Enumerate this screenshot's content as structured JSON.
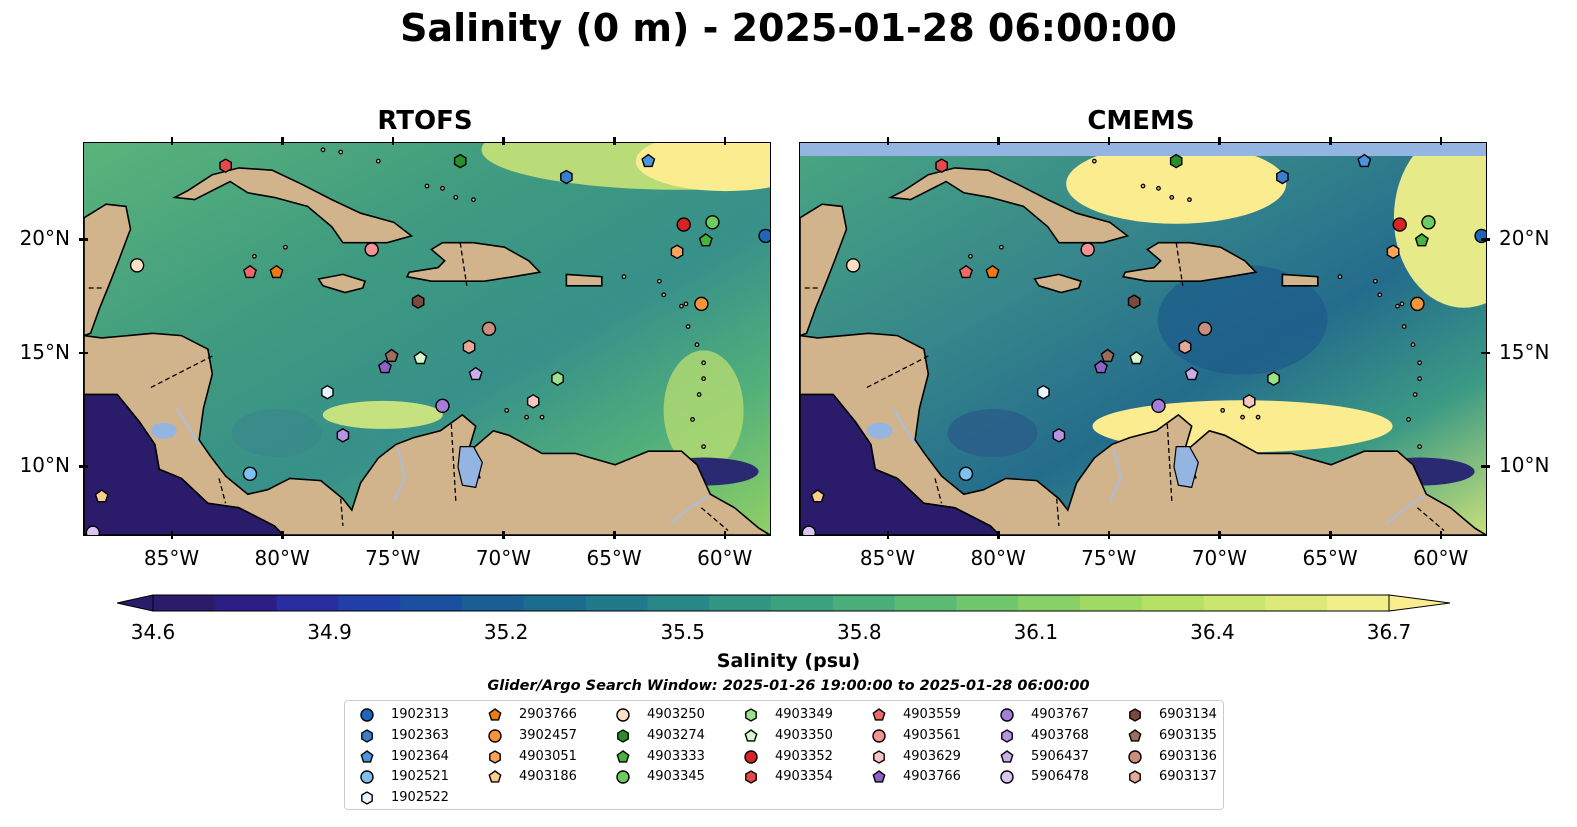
{
  "title": "Salinity (0 m) - 2025-01-28 06:00:00",
  "panels": [
    {
      "title": "RTOFS",
      "model": "rtofs"
    },
    {
      "title": "CMEMS",
      "model": "cmems"
    }
  ],
  "axes": {
    "lon_ticks": [
      "85°W",
      "80°W",
      "75°W",
      "70°W",
      "65°W",
      "60°W"
    ],
    "lat_ticks": [
      "20°N",
      "15°N",
      "10°N"
    ],
    "lon_range": [
      -89.0,
      -58.0
    ],
    "lat_range": [
      7.0,
      24.3
    ]
  },
  "colorbar": {
    "label": "Salinity (psu)",
    "ticks": [
      "34.6",
      "34.9",
      "35.2",
      "35.5",
      "35.8",
      "36.1",
      "36.4",
      "36.7"
    ],
    "range": [
      34.6,
      36.7
    ],
    "colormap": "haline",
    "extend": "both"
  },
  "search_window": "Glider/Argo Search Window: 2025-01-26 19:00:00 to 2025-01-28 06:00:00",
  "colors": {
    "land": "#d2b48c",
    "lakes": "#94b4e2",
    "low_salinity": "#2a1c6a",
    "high_salinity": "#fbec8f"
  },
  "floats": [
    {
      "id": "1902313",
      "marker": "circle",
      "color": "#1f66b8",
      "lon": -58.2,
      "lat": 20.2
    },
    {
      "id": "1902363",
      "marker": "hexagon",
      "color": "#3a7fcf",
      "lon": -67.2,
      "lat": 22.8
    },
    {
      "id": "1902364",
      "marker": "pentagon",
      "color": "#4c93e0",
      "lon": -63.5,
      "lat": 23.5
    },
    {
      "id": "1902521",
      "marker": "circle",
      "color": "#7fc0f0",
      "lon": -81.5,
      "lat": 9.7
    },
    {
      "id": "1902522",
      "marker": "hexagon",
      "color": "#e8f5ff",
      "lon": -78.0,
      "lat": 13.3
    },
    {
      "id": "2903766",
      "marker": "pentagon",
      "color": "#ee7a12",
      "lon": -80.3,
      "lat": 18.6
    },
    {
      "id": "3902457",
      "marker": "circle",
      "color": "#f6943a",
      "lon": -61.1,
      "lat": 17.2
    },
    {
      "id": "4903051",
      "marker": "hexagon",
      "color": "#f8a55a",
      "lon": -62.2,
      "lat": 19.5
    },
    {
      "id": "4903186",
      "marker": "pentagon",
      "color": "#fbcd8c",
      "lon": -88.2,
      "lat": 8.7
    },
    {
      "id": "4903250",
      "marker": "circle",
      "color": "#fde0c4",
      "lon": -86.6,
      "lat": 18.9
    },
    {
      "id": "4903274",
      "marker": "hexagon",
      "color": "#2a8f2a",
      "lon": -72.0,
      "lat": 23.5
    },
    {
      "id": "4903333",
      "marker": "pentagon",
      "color": "#45b53c",
      "lon": -60.9,
      "lat": 20.0
    },
    {
      "id": "4903345",
      "marker": "circle",
      "color": "#6ccc60",
      "lon": -60.6,
      "lat": 20.8
    },
    {
      "id": "4903349",
      "marker": "hexagon",
      "color": "#9be38b",
      "lon": -67.6,
      "lat": 13.9
    },
    {
      "id": "4903350",
      "marker": "pentagon",
      "color": "#d7f7cc",
      "lon": -73.8,
      "lat": 14.8
    },
    {
      "id": "4903352",
      "marker": "circle",
      "color": "#d42424",
      "lon": -61.9,
      "lat": 20.7
    },
    {
      "id": "4903354",
      "marker": "hexagon",
      "color": "#e84848",
      "lon": -82.6,
      "lat": 23.3
    },
    {
      "id": "4903559",
      "marker": "pentagon",
      "color": "#f06868",
      "lon": -81.5,
      "lat": 18.6
    },
    {
      "id": "4903561",
      "marker": "circle",
      "color": "#f39494",
      "lon": -76.0,
      "lat": 19.6
    },
    {
      "id": "4903629",
      "marker": "hexagon",
      "color": "#f9c4c4",
      "lon": -68.7,
      "lat": 12.9
    },
    {
      "id": "4903766",
      "marker": "pentagon",
      "color": "#8c62c8",
      "lon": -75.4,
      "lat": 14.4
    },
    {
      "id": "4903767",
      "marker": "circle",
      "color": "#a57ed8",
      "lon": -72.8,
      "lat": 12.7
    },
    {
      "id": "4903768",
      "marker": "hexagon",
      "color": "#b793e3",
      "lon": -77.3,
      "lat": 11.4
    },
    {
      "id": "5906437",
      "marker": "pentagon",
      "color": "#c9aeea",
      "lon": -71.3,
      "lat": 14.1
    },
    {
      "id": "5906478",
      "marker": "circle",
      "color": "#dcc4f3",
      "lon": -88.6,
      "lat": 7.1
    },
    {
      "id": "6903134",
      "marker": "hexagon",
      "color": "#7a4a3c",
      "lon": -73.9,
      "lat": 17.3
    },
    {
      "id": "6903135",
      "marker": "pentagon",
      "color": "#9c6e5d",
      "lon": -75.1,
      "lat": 14.9
    },
    {
      "id": "6903136",
      "marker": "circle",
      "color": "#c98e7c",
      "lon": -70.7,
      "lat": 16.1
    },
    {
      "id": "6903137",
      "marker": "hexagon",
      "color": "#e4aa97",
      "lon": -71.6,
      "lat": 15.3
    }
  ]
}
